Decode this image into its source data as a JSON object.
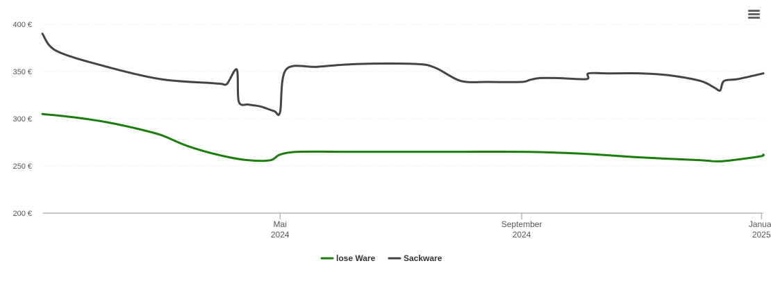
{
  "chart_data": {
    "type": "line",
    "title": "",
    "xlabel": "",
    "ylabel": "",
    "ylim": [
      200,
      400
    ],
    "yticks": [
      {
        "value": 200,
        "label": "200 €"
      },
      {
        "value": 250,
        "label": "250 €"
      },
      {
        "value": 300,
        "label": "300 €"
      },
      {
        "value": 350,
        "label": "350 €"
      },
      {
        "value": 400,
        "label": "400 €"
      }
    ],
    "xlim": [
      "2024-01-01",
      "2025-01-02"
    ],
    "xticks": [
      {
        "date": "2024-05-01",
        "line1": "Mai",
        "line2": "2024"
      },
      {
        "date": "2024-09-01",
        "line1": "September",
        "line2": "2024"
      },
      {
        "date": "2025-01-01",
        "line1": "Januar",
        "line2": "2025"
      }
    ],
    "grid": true,
    "legend_position": "bottom-center",
    "series": [
      {
        "name": "lose Ware",
        "color": "#1a7d0c",
        "points": [
          [
            "2024-01-01",
            305
          ],
          [
            "2024-01-15",
            302
          ],
          [
            "2024-02-01",
            297
          ],
          [
            "2024-02-15",
            291
          ],
          [
            "2024-03-01",
            283
          ],
          [
            "2024-03-15",
            271
          ],
          [
            "2024-04-01",
            261
          ],
          [
            "2024-04-15",
            256
          ],
          [
            "2024-04-26",
            256
          ],
          [
            "2024-05-01",
            262
          ],
          [
            "2024-05-10",
            265
          ],
          [
            "2024-06-01",
            265
          ],
          [
            "2024-07-01",
            265
          ],
          [
            "2024-08-01",
            265
          ],
          [
            "2024-09-01",
            265
          ],
          [
            "2024-10-01",
            263
          ],
          [
            "2024-11-01",
            259
          ],
          [
            "2024-12-01",
            256
          ],
          [
            "2024-12-12",
            255
          ],
          [
            "2024-12-31",
            260
          ],
          [
            "2025-01-02",
            262
          ]
        ]
      },
      {
        "name": "Sackware",
        "color": "#434348",
        "points": [
          [
            "2024-01-01",
            390
          ],
          [
            "2024-01-08",
            372
          ],
          [
            "2024-02-01",
            356
          ],
          [
            "2024-03-01",
            342
          ],
          [
            "2024-03-25",
            338
          ],
          [
            "2024-04-01",
            337
          ],
          [
            "2024-04-04",
            337
          ],
          [
            "2024-04-09",
            352
          ],
          [
            "2024-04-10",
            318
          ],
          [
            "2024-04-15",
            315
          ],
          [
            "2024-04-21",
            313
          ],
          [
            "2024-04-28",
            308
          ],
          [
            "2024-05-01",
            307
          ],
          [
            "2024-05-04",
            352
          ],
          [
            "2024-05-20",
            355
          ],
          [
            "2024-06-10",
            358
          ],
          [
            "2024-07-09",
            358
          ],
          [
            "2024-07-19",
            354
          ],
          [
            "2024-08-01",
            340
          ],
          [
            "2024-08-15",
            339
          ],
          [
            "2024-09-01",
            339
          ],
          [
            "2024-09-05",
            341
          ],
          [
            "2024-09-10",
            343
          ],
          [
            "2024-09-20",
            343
          ],
          [
            "2024-10-04",
            342
          ],
          [
            "2024-10-05",
            348
          ],
          [
            "2024-10-15",
            348
          ],
          [
            "2024-11-01",
            348
          ],
          [
            "2024-11-15",
            346
          ],
          [
            "2024-12-01",
            340
          ],
          [
            "2024-12-08",
            333
          ],
          [
            "2024-12-11",
            330
          ],
          [
            "2024-12-13",
            340
          ],
          [
            "2024-12-20",
            342
          ],
          [
            "2025-01-02",
            348
          ]
        ]
      }
    ]
  },
  "menu": {
    "icon": "hamburger-menu-icon"
  }
}
